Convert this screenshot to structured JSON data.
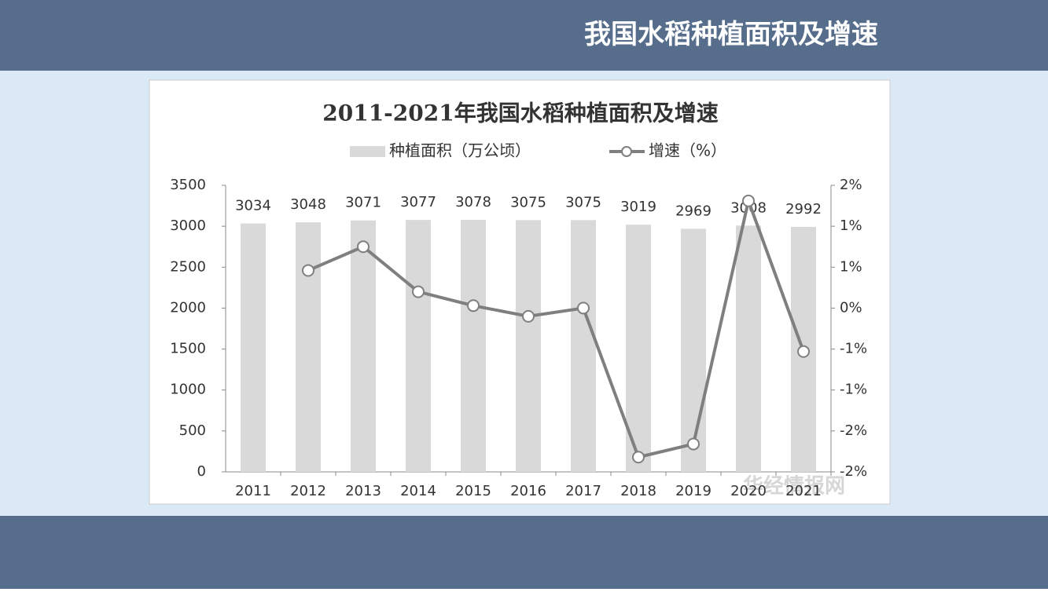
{
  "header": {
    "title": "我国水稻种植面积及增速"
  },
  "watermark": "华经情报网",
  "chart_data": {
    "type": "bar-line",
    "title": "2011-2021年我国水稻种植面积及增速",
    "categories": [
      "2011",
      "2012",
      "2013",
      "2014",
      "2015",
      "2016",
      "2017",
      "2018",
      "2019",
      "2020",
      "2021"
    ],
    "series": [
      {
        "name": "种植面积（万公顷）",
        "type": "bar",
        "color": "#d9d9d9",
        "values": [
          3034,
          3048,
          3071,
          3077,
          3078,
          3075,
          3075,
          3019,
          2969,
          3008,
          2992
        ]
      },
      {
        "name": "增速（%）",
        "type": "line",
        "axis": "y2",
        "color": "#7f7f7f",
        "values": [
          null,
          0.46,
          0.75,
          0.2,
          0.03,
          -0.1,
          0,
          -1.82,
          -1.66,
          1.31,
          -0.53
        ]
      }
    ],
    "ylim": [
      0,
      3500
    ],
    "yticks": [
      0,
      500,
      1000,
      1500,
      2000,
      2500,
      3000,
      3500
    ],
    "y2lim": [
      -2,
      1.5
    ],
    "y2ticks": [
      {
        "value": -2,
        "label": "-2%"
      },
      {
        "value": -1.5,
        "label": "-2%"
      },
      {
        "value": -1,
        "label": "-1%"
      },
      {
        "value": -0.5,
        "label": "-1%"
      },
      {
        "value": 0,
        "label": "0%"
      },
      {
        "value": 0.5,
        "label": "1%"
      },
      {
        "value": 1,
        "label": "1%"
      },
      {
        "value": 1.5,
        "label": "2%"
      }
    ],
    "legend": "top",
    "grid": false
  }
}
